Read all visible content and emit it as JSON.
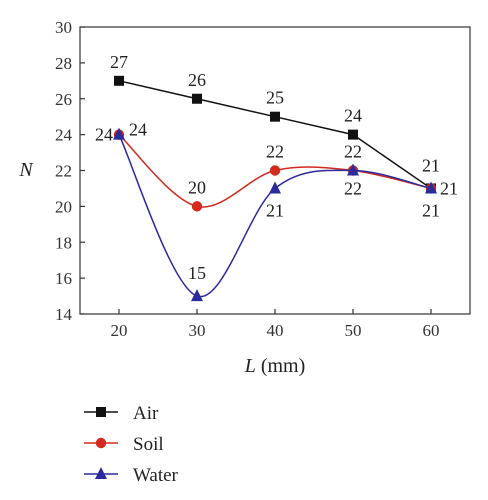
{
  "chart_data": {
    "type": "line",
    "x": [
      20,
      30,
      40,
      50,
      60
    ],
    "xlim": [
      15,
      65
    ],
    "ylim": [
      14,
      30
    ],
    "xticks": [
      20,
      30,
      40,
      50,
      60
    ],
    "yticks": [
      14,
      16,
      18,
      20,
      22,
      24,
      26,
      28,
      30
    ],
    "xlabel_italic": "L",
    "xlabel_unit": " (mm)",
    "ylabel": "N",
    "grid": false,
    "legend_position": "bottom-left",
    "series": [
      {
        "name": "Air",
        "values": [
          27,
          26,
          25,
          24,
          21
        ],
        "color": "#111111",
        "marker": "square",
        "smooth": false,
        "labels": [
          "27",
          "26",
          "25",
          "24",
          "21"
        ]
      },
      {
        "name": "Soil",
        "values": [
          24,
          20,
          22,
          22,
          21
        ],
        "color": "#d42a1e",
        "marker": "circle",
        "smooth": true,
        "labels": [
          "24",
          "20",
          "22",
          "22",
          "21"
        ]
      },
      {
        "name": "Water",
        "values": [
          24,
          15,
          21,
          22,
          21
        ],
        "color": "#2b2b9b",
        "marker": "triangle",
        "smooth": true,
        "labels": [
          "24",
          "15",
          "21",
          "22",
          "21"
        ]
      }
    ]
  }
}
